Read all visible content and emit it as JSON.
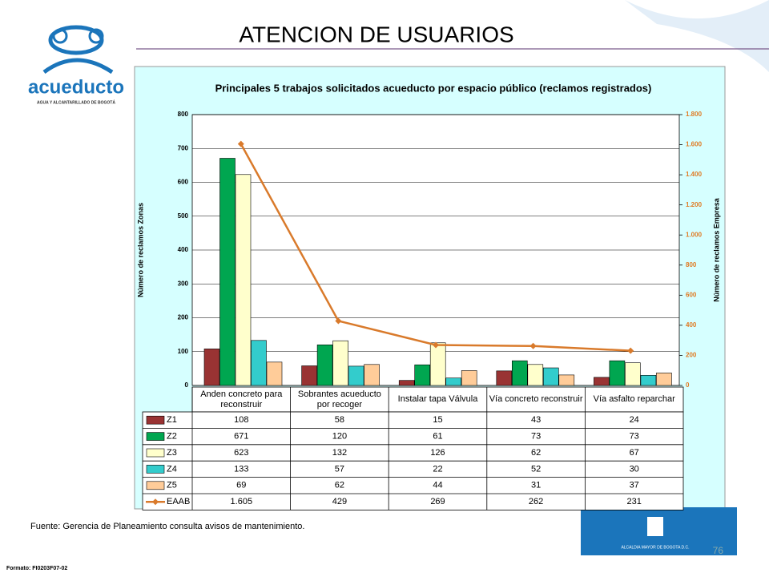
{
  "slide": {
    "title": "ATENCION DE USUARIOS",
    "logo_name": "acueducto",
    "logo_subtitle": "AGUA Y ALCANTARILLADO DE BOGOTÁ",
    "source": "Fuente: Gerencia de Planeamiento consulta avisos de mantenimiento.",
    "format_code": "Formato: FI0203F07-02",
    "page_number": "76",
    "footer_logo": "ALCALDIA MAYOR DE BOGOTA D.C."
  },
  "chart_data": {
    "type": "bar",
    "title": "Principales 5 trabajos solicitados acueducto por espacio público (reclamos registrados)",
    "y_label": "Número de reclamos Zonas",
    "y2_label": "Número de reclamos Empresa",
    "categories": [
      "Anden concreto para reconstruir",
      "Sobrantes acueducto por recoger",
      "Instalar tapa Válvula",
      "Vía concreto reconstruir",
      "Vía asfalto reparchar"
    ],
    "series": [
      {
        "name": "Z1",
        "color": "#993333",
        "values": [
          108,
          58,
          15,
          43,
          24
        ]
      },
      {
        "name": "Z2",
        "color": "#00a650",
        "values": [
          671,
          120,
          61,
          73,
          73
        ]
      },
      {
        "name": "Z3",
        "color": "#ffffcc",
        "values": [
          623,
          132,
          126,
          62,
          67
        ]
      },
      {
        "name": "Z4",
        "color": "#33cccc",
        "values": [
          133,
          57,
          22,
          52,
          30
        ]
      },
      {
        "name": "Z5",
        "color": "#ffcc99",
        "values": [
          69,
          62,
          44,
          31,
          37
        ]
      },
      {
        "name": "EAAB",
        "color": "#d97a2b",
        "type": "line",
        "axis": "y2",
        "values": [
          1605,
          429,
          269,
          262,
          231
        ],
        "value_labels": [
          "1.605",
          "429",
          "269",
          "262",
          "231"
        ]
      }
    ],
    "ylim": [
      0,
      800
    ],
    "yticks": [
      0,
      100,
      200,
      300,
      400,
      500,
      600,
      700,
      800
    ],
    "y2lim": [
      0,
      1800
    ],
    "y2ticks": [
      0,
      200,
      400,
      600,
      800,
      {
        "value": 1000,
        "label": "1.000"
      },
      {
        "value": 1200,
        "label": "1.200"
      },
      {
        "value": 1400,
        "label": "1.400"
      },
      {
        "value": 1600,
        "label": "1.600"
      },
      {
        "value": 1800,
        "label": "1.800"
      }
    ],
    "grid": true
  }
}
